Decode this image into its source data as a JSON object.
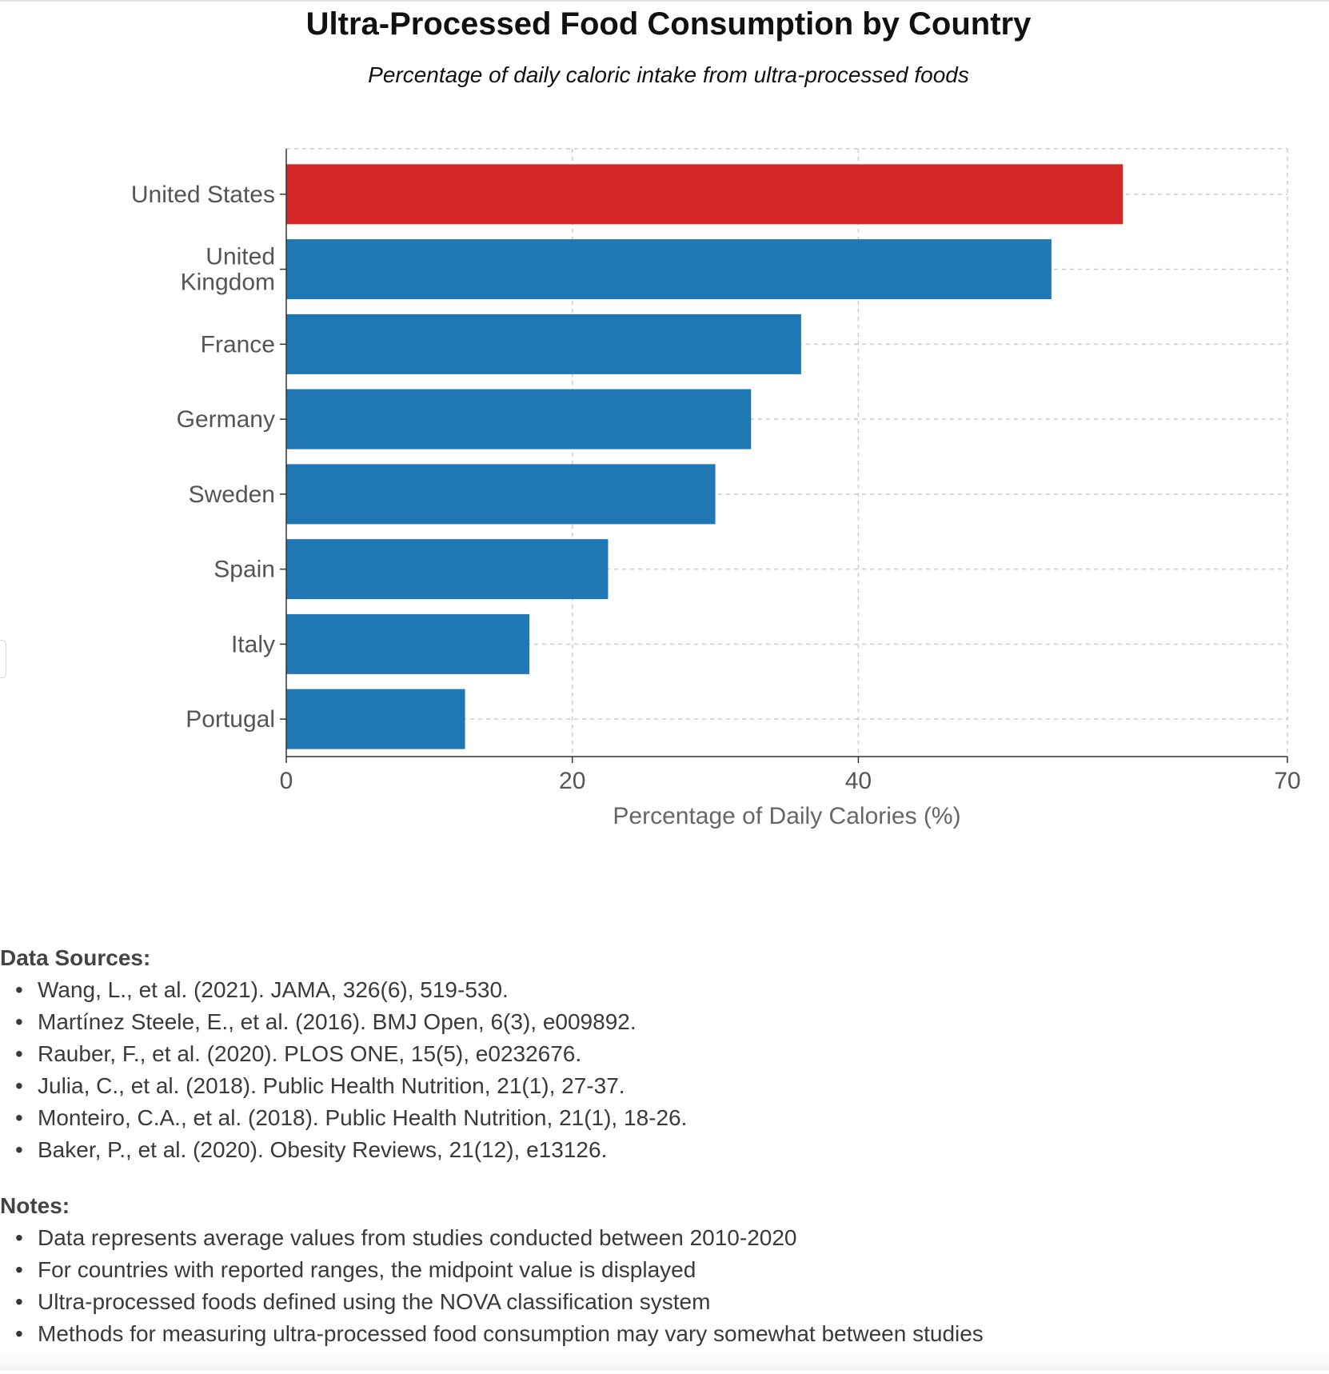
{
  "chart_data": {
    "type": "bar",
    "orientation": "horizontal",
    "title": "Ultra-Processed Food Consumption by Country",
    "subtitle": "Percentage of daily caloric intake from ultra-processed foods",
    "categories": [
      "United States",
      "United Kingdom",
      "France",
      "Germany",
      "Sweden",
      "Spain",
      "Italy",
      "Portugal"
    ],
    "category_lines": [
      [
        "United States"
      ],
      [
        "United",
        "Kingdom"
      ],
      [
        "France"
      ],
      [
        "Germany"
      ],
      [
        "Sweden"
      ],
      [
        "Spain"
      ],
      [
        "Italy"
      ],
      [
        "Portugal"
      ]
    ],
    "values": [
      58.5,
      53.5,
      36.0,
      32.5,
      30.0,
      22.5,
      17.0,
      12.5
    ],
    "highlight_category": "United States",
    "xlabel": "Percentage of Daily Calories (%)",
    "ylabel": "",
    "xlim": [
      0,
      70
    ],
    "xticks": [
      0,
      20,
      40,
      70
    ],
    "grid": true,
    "colors": {
      "highlight": "#d62728",
      "default": "#1f77b4",
      "grid": "#cccccc",
      "axis": "#333333",
      "axis_text": "#555555",
      "axis_title": "#666666"
    }
  },
  "sources": {
    "heading": "Data Sources:",
    "items": [
      "Wang, L., et al. (2021). JAMA, 326(6), 519-530.",
      "Martínez Steele, E., et al. (2016). BMJ Open, 6(3), e009892.",
      "Rauber, F., et al. (2020). PLOS ONE, 15(5), e0232676.",
      "Julia, C., et al. (2018). Public Health Nutrition, 21(1), 27-37.",
      "Monteiro, C.A., et al. (2018). Public Health Nutrition, 21(1), 18-26.",
      "Baker, P., et al. (2020). Obesity Reviews, 21(12), e13126."
    ]
  },
  "notes": {
    "heading": "Notes:",
    "items": [
      "Data represents average values from studies conducted between 2010-2020",
      "For countries with reported ranges, the midpoint value is displayed",
      "Ultra-processed foods defined using the NOVA classification system",
      "Methods for measuring ultra-processed food consumption may vary somewhat between studies"
    ]
  }
}
